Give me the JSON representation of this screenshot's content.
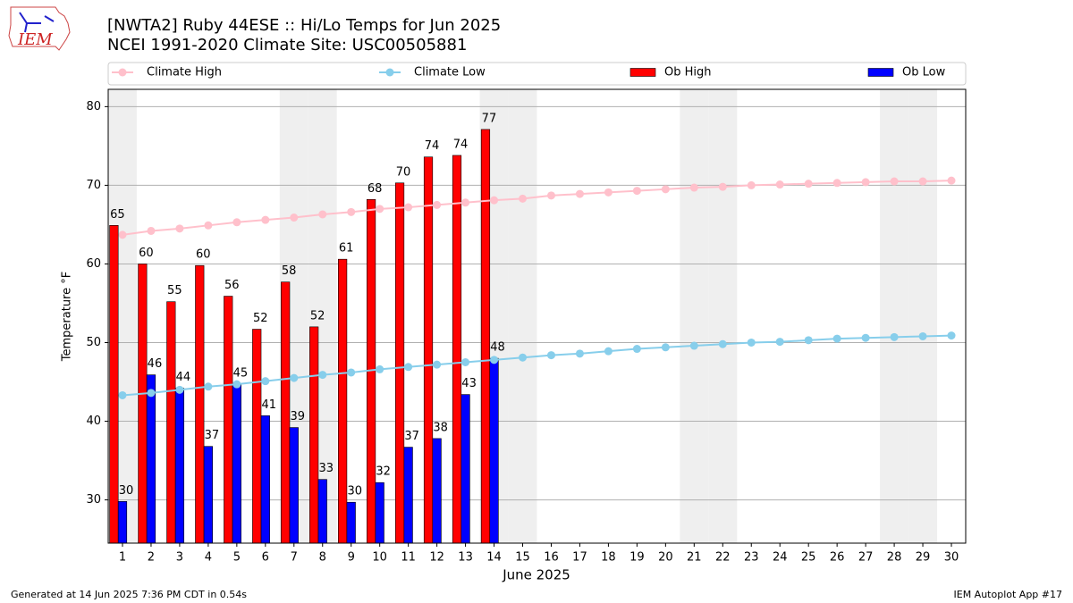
{
  "chart_data": {
    "type": "bar",
    "title": "[NWTA2] Ruby 44ESE :: Hi/Lo Temps for Jun 2025",
    "subtitle": "NCEI 1991-2020 Climate Site: USC00505881",
    "logo_text": "IEM",
    "y_label": "Temperature °F",
    "x_label": "June 2025",
    "footer_left": "Generated at 14 Jun 2025 7:36 PM CDT in 0.54s",
    "footer_right": "IEM Autoplot App #17",
    "categories": [
      "1",
      "2",
      "3",
      "4",
      "5",
      "6",
      "7",
      "8",
      "9",
      "10",
      "11",
      "12",
      "13",
      "14",
      "15",
      "16",
      "17",
      "18",
      "19",
      "20",
      "21",
      "22",
      "23",
      "24",
      "25",
      "26",
      "27",
      "28",
      "29",
      "30"
    ],
    "shaded_categories": [
      "1",
      "7",
      "8",
      "14",
      "15",
      "21",
      "22",
      "28",
      "29"
    ],
    "series": [
      {
        "name": "Climate High",
        "type": "line",
        "color": "#ffc0cb",
        "values": [
          63.7,
          64.2,
          64.5,
          64.9,
          65.3,
          65.6,
          65.9,
          66.3,
          66.6,
          67.0,
          67.2,
          67.5,
          67.8,
          68.1,
          68.3,
          68.7,
          68.9,
          69.1,
          69.3,
          69.5,
          69.7,
          69.8,
          70.0,
          70.1,
          70.2,
          70.3,
          70.4,
          70.5,
          70.5,
          70.6
        ]
      },
      {
        "name": "Climate Low",
        "type": "line",
        "color": "#87ceeb",
        "values": [
          43.3,
          43.6,
          44.0,
          44.4,
          44.7,
          45.1,
          45.5,
          45.9,
          46.2,
          46.6,
          46.9,
          47.2,
          47.5,
          47.8,
          48.1,
          48.4,
          48.6,
          48.9,
          49.2,
          49.4,
          49.6,
          49.8,
          50.0,
          50.1,
          50.3,
          50.5,
          50.6,
          50.7,
          50.8,
          50.9
        ]
      },
      {
        "name": "Ob High",
        "type": "bar",
        "color": "#ff0000",
        "values": [
          64.9,
          60.0,
          55.2,
          59.8,
          55.9,
          51.7,
          57.7,
          52.0,
          60.6,
          68.2,
          70.3,
          73.6,
          73.8,
          77.1,
          null,
          null,
          null,
          null,
          null,
          null,
          null,
          null,
          null,
          null,
          null,
          null,
          null,
          null,
          null,
          null
        ],
        "value_labels": [
          "65",
          "60",
          "55",
          "60",
          "56",
          "52",
          "58",
          "52",
          "61",
          "68",
          "70",
          "74",
          "74",
          "77",
          null,
          null,
          null,
          null,
          null,
          null,
          null,
          null,
          null,
          null,
          null,
          null,
          null,
          null,
          null,
          null
        ]
      },
      {
        "name": "Ob Low",
        "type": "bar",
        "color": "#0000ff",
        "values": [
          29.8,
          45.9,
          44.2,
          36.8,
          44.7,
          40.7,
          39.2,
          32.6,
          29.7,
          32.2,
          36.7,
          37.8,
          43.4,
          48.0,
          null,
          null,
          null,
          null,
          null,
          null,
          null,
          null,
          null,
          null,
          null,
          null,
          null,
          null,
          null,
          null
        ],
        "value_labels": [
          "30",
          "46",
          "44",
          "37",
          "45",
          "41",
          "39",
          "33",
          "30",
          "32",
          "37",
          "38",
          "43",
          "48",
          null,
          null,
          null,
          null,
          null,
          null,
          null,
          null,
          null,
          null,
          null,
          null,
          null,
          null,
          null,
          null
        ]
      }
    ],
    "ylim": [
      24.5,
      82.2
    ],
    "yticks": [
      30,
      40,
      50,
      60,
      70,
      80
    ],
    "grid": true
  }
}
